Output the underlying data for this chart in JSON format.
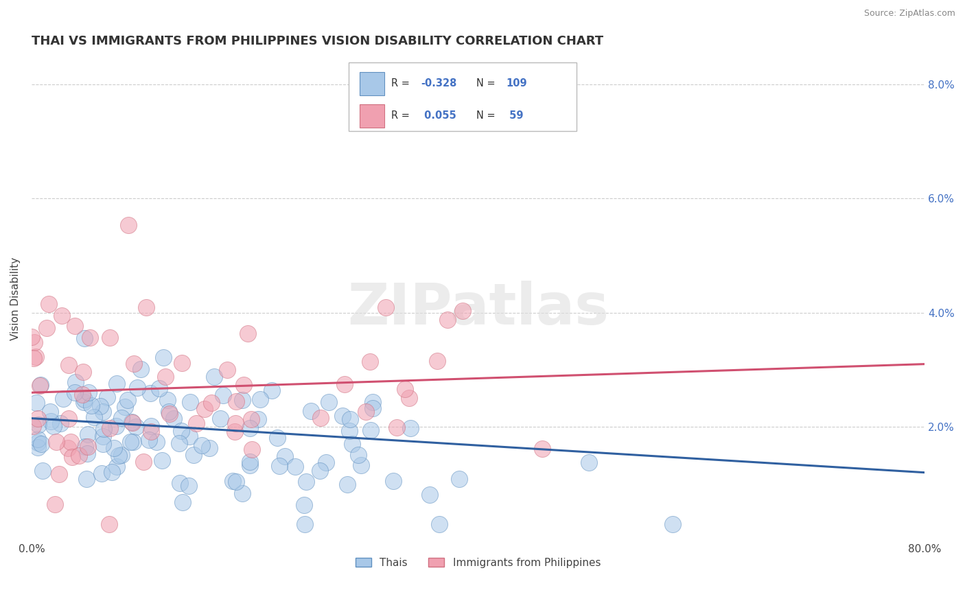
{
  "title": "THAI VS IMMIGRANTS FROM PHILIPPINES VISION DISABILITY CORRELATION CHART",
  "source_text": "Source: ZipAtlas.com",
  "ylabel": "Vision Disability",
  "watermark": "ZIPatlas",
  "legend_bottom": [
    "Thais",
    "Immigrants from Philippines"
  ],
  "xlim": [
    0.0,
    0.8
  ],
  "ylim": [
    0.0,
    0.085
  ],
  "xticks": [
    0.0,
    0.1,
    0.2,
    0.3,
    0.4,
    0.5,
    0.6,
    0.7,
    0.8
  ],
  "yticks": [
    0.0,
    0.02,
    0.04,
    0.06,
    0.08
  ],
  "ytick_labels_right": [
    "",
    "2.0%",
    "4.0%",
    "6.0%",
    "8.0%"
  ],
  "blue_fill": "#a8c8e8",
  "blue_edge": "#6090c0",
  "pink_fill": "#f0a0b0",
  "pink_edge": "#d07080",
  "blue_line_color": "#3060a0",
  "pink_line_color": "#d05070",
  "title_fontsize": 13,
  "axis_label_fontsize": 11,
  "tick_fontsize": 11,
  "R_blue": -0.328,
  "N_blue": 109,
  "R_pink": 0.055,
  "N_pink": 59,
  "blue_line_y0": 0.0215,
  "blue_line_y1": 0.012,
  "pink_line_y0": 0.026,
  "pink_line_y1": 0.031
}
